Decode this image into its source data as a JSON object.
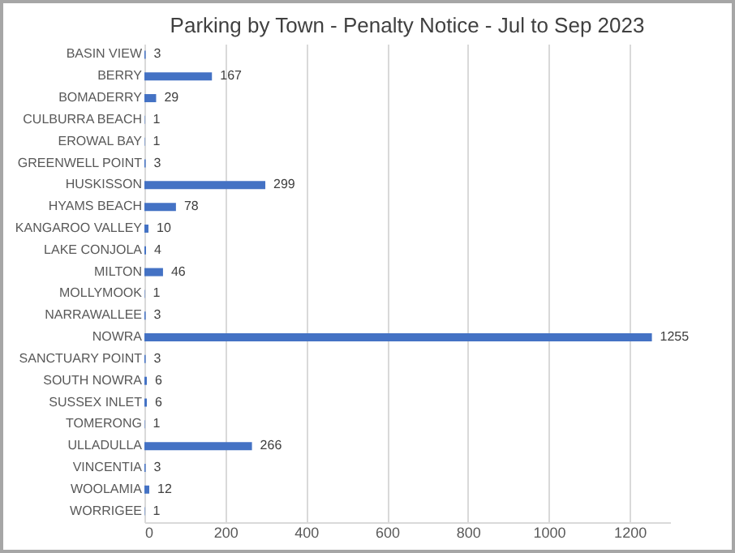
{
  "chart_data": {
    "type": "bar",
    "orientation": "horizontal",
    "title": "Parking by Town - Penalty Notice - Jul to Sep 2023",
    "categories": [
      "BASIN VIEW",
      "BERRY",
      "BOMADERRY",
      "CULBURRA BEACH",
      "EROWAL BAY",
      "GREENWELL POINT",
      "HUSKISSON",
      "HYAMS BEACH",
      "KANGAROO VALLEY",
      "LAKE CONJOLA",
      "MILTON",
      "MOLLYMOOK",
      "NARRAWALLEE",
      "NOWRA",
      "SANCTUARY POINT",
      "SOUTH NOWRA",
      "SUSSEX INLET",
      "TOMERONG",
      "ULLADULLA",
      "VINCENTIA",
      "WOOLAMIA",
      "WORRIGEE"
    ],
    "values": [
      3,
      167,
      29,
      1,
      1,
      3,
      299,
      78,
      10,
      4,
      46,
      1,
      3,
      1255,
      3,
      6,
      6,
      1,
      266,
      3,
      12,
      1
    ],
    "color": "#4472c4",
    "xlim": [
      0,
      1300
    ],
    "xticks": [
      0,
      200,
      400,
      600,
      800,
      1000,
      1200
    ],
    "grid": "x",
    "data_labels": true
  }
}
